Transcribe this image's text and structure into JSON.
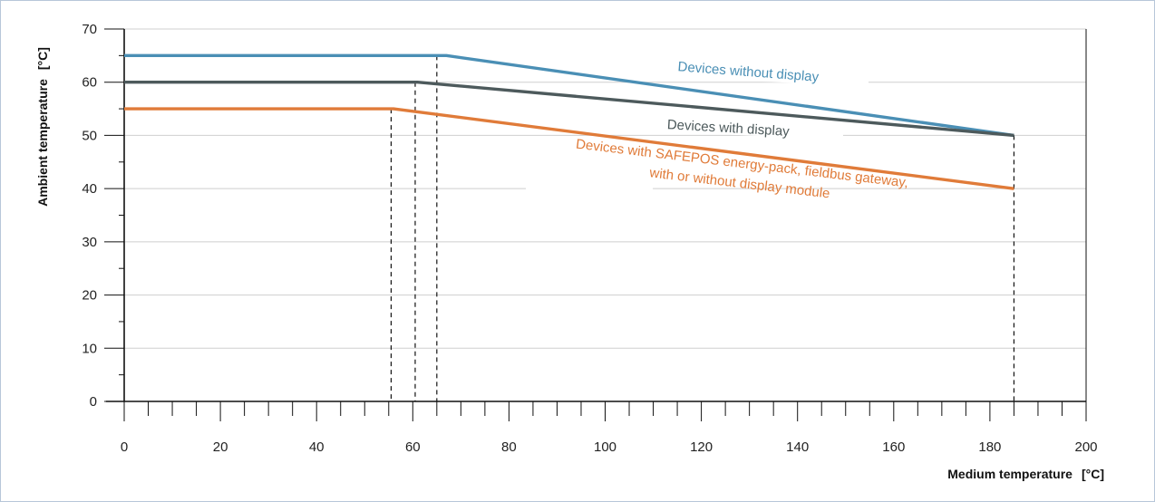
{
  "chart_data": {
    "type": "line",
    "xlabel": "Medium temperature",
    "xunit": "[°C]",
    "ylabel": "Ambient temperature",
    "yunit": "[°C]",
    "xlim": [
      0,
      200
    ],
    "ylim": [
      0,
      70
    ],
    "x_ticks": [
      0,
      20,
      40,
      60,
      80,
      100,
      120,
      140,
      160,
      180,
      200
    ],
    "y_ticks": [
      0,
      10,
      20,
      30,
      40,
      50,
      60,
      70
    ],
    "grid": "horizontal",
    "series": [
      {
        "name": "Devices without display",
        "color": "#4a8fb5",
        "points": [
          [
            0,
            65
          ],
          [
            67,
            65
          ],
          [
            185,
            50
          ]
        ]
      },
      {
        "name": "Devices with display",
        "color": "#4d5a5c",
        "points": [
          [
            0,
            60
          ],
          [
            61,
            60
          ],
          [
            185,
            50
          ]
        ]
      },
      {
        "name": "Devices with SAFEPOS energy-pack, fieldbus gateway, with or without display module",
        "label_lines": [
          "Devices with SAFEPOS energy-pack, fieldbus gateway,",
          "with or without display module"
        ],
        "color": "#e07b39",
        "points": [
          [
            0,
            55
          ],
          [
            56,
            55
          ],
          [
            185,
            40
          ]
        ]
      }
    ],
    "reference_x": [
      55.5,
      60.5,
      65,
      185
    ]
  }
}
